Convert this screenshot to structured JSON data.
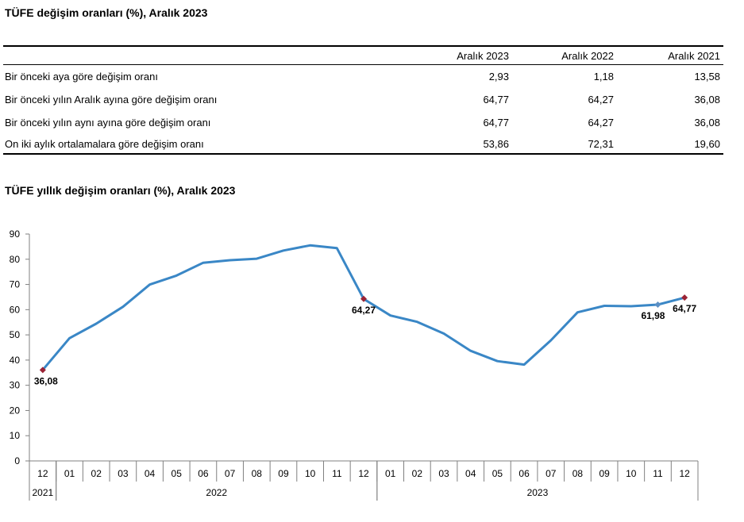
{
  "table": {
    "title": "TÜFE değişim oranları (%), Aralık 2023",
    "headers": [
      "Aralık 2023",
      "Aralık 2022",
      "Aralık 2021"
    ],
    "rows": [
      {
        "label": "Bir önceki aya göre değişim oranı",
        "values": [
          "2,93",
          "1,18",
          "13,58"
        ]
      },
      {
        "label": "Bir önceki yılın Aralık ayına göre değişim oranı",
        "values": [
          "64,77",
          "64,27",
          "36,08"
        ]
      },
      {
        "label": "Bir önceki yılın aynı ayına göre değişim oranı",
        "values": [
          "64,77",
          "64,27",
          "36,08"
        ]
      },
      {
        "label": "On iki aylık ortalamalara göre değişim oranı",
        "values": [
          "53,86",
          "72,31",
          "19,60"
        ]
      }
    ]
  },
  "chart_data": {
    "type": "line",
    "title": "TÜFE yıllık değişim oranları (%), Aralık 2023",
    "x": [
      "12",
      "01",
      "02",
      "03",
      "04",
      "05",
      "06",
      "07",
      "08",
      "09",
      "10",
      "11",
      "12",
      "01",
      "02",
      "03",
      "04",
      "05",
      "06",
      "07",
      "08",
      "09",
      "10",
      "11",
      "12"
    ],
    "year_groups": [
      {
        "label": "2021",
        "count": 1
      },
      {
        "label": "2022",
        "count": 12
      },
      {
        "label": "2023",
        "count": 12
      }
    ],
    "series": [
      {
        "values": [
          36.08,
          48.69,
          54.44,
          61.14,
          69.97,
          73.5,
          78.62,
          79.6,
          80.21,
          83.45,
          85.51,
          84.39,
          64.27,
          57.68,
          55.18,
          50.51,
          43.68,
          39.59,
          38.21,
          47.83,
          58.94,
          61.53,
          61.36,
          61.98,
          64.77
        ],
        "color": "#3a87c6"
      }
    ],
    "highlight_points": [
      {
        "index": 0,
        "label": "36,08",
        "color": "#9b2335"
      },
      {
        "index": 12,
        "label": "64,27",
        "color": "#9b2335"
      },
      {
        "index": 23,
        "label": "61,98",
        "color": "#5b8fc4"
      },
      {
        "index": 24,
        "label": "64,77",
        "color": "#9b2335"
      }
    ],
    "ylim": [
      0,
      90
    ],
    "yticks": [
      0,
      10,
      20,
      30,
      40,
      50,
      60,
      70,
      80,
      90
    ],
    "grid": false,
    "legend": "none"
  }
}
